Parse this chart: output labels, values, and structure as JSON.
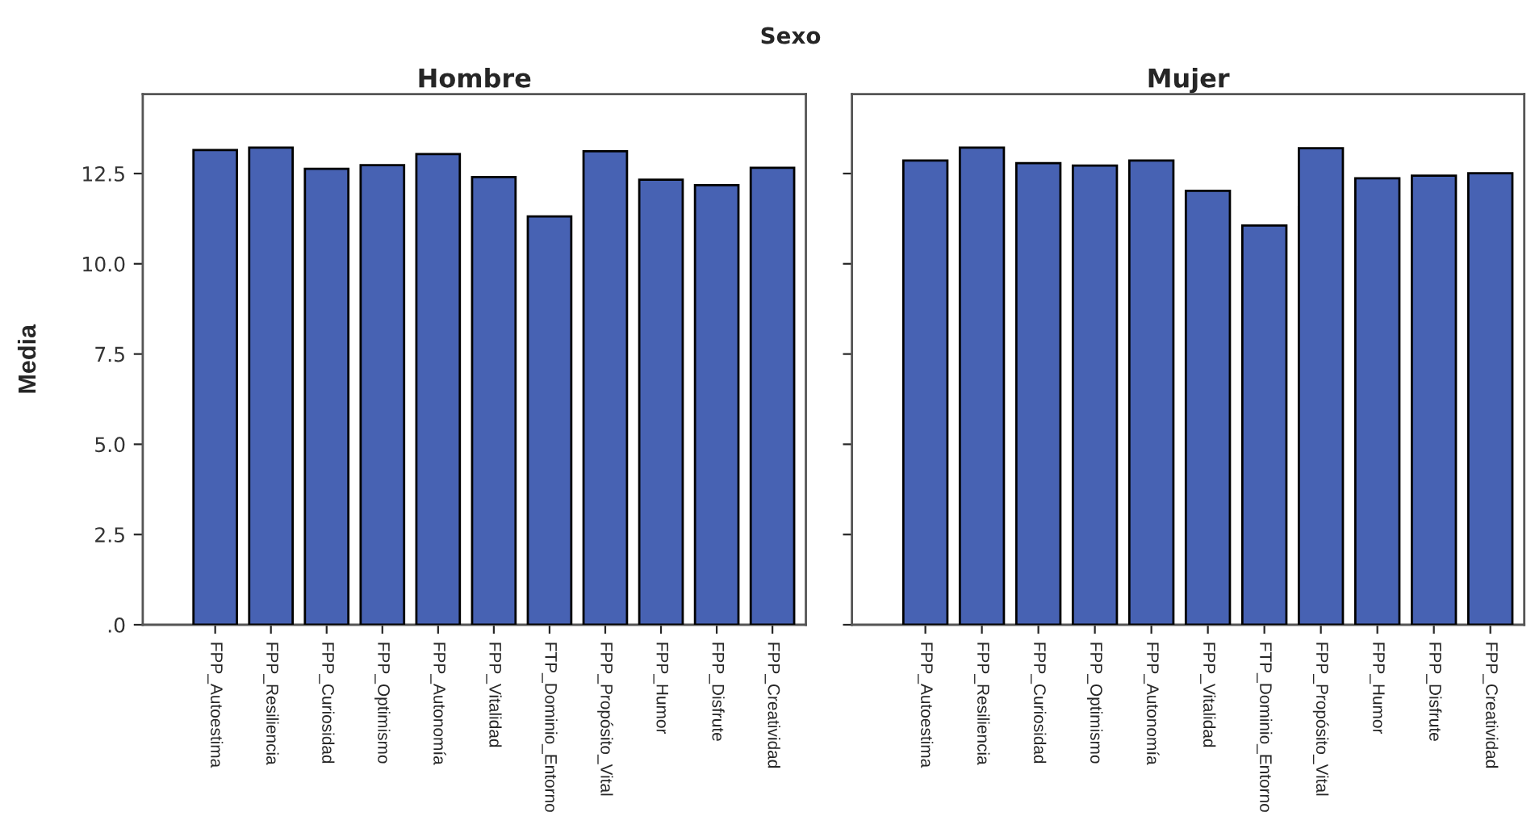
{
  "chart_data": [
    {
      "type": "bar",
      "title": "Hombre",
      "ylabel": "Media",
      "annotations": [
        "Sexo"
      ],
      "categories": [
        "FPP_Autoestima",
        "FPP_Resiliencia",
        "FPP_Curiosidad",
        "FPP_Optimismo",
        "FPP_Autonomía",
        "FPP_Vitalidad",
        "FTP_Dominio_Entorno",
        "FPP_Propósito_Vital",
        "FPP_Humor",
        "FPP_Disfrute",
        "FPP_Creatividad"
      ],
      "values": [
        13.15,
        13.22,
        12.63,
        12.73,
        13.04,
        12.4,
        11.31,
        13.12,
        12.33,
        12.18,
        12.66
      ],
      "color": "#4762b3",
      "ylim": [
        0,
        14.7
      ],
      "yticks": [
        {
          "value": 0,
          "label": ".0"
        },
        {
          "value": 2.5,
          "label": "2.5"
        },
        {
          "value": 5,
          "label": "5.0"
        },
        {
          "value": 7.5,
          "label": "7.5"
        },
        {
          "value": 10,
          "label": "10.0"
        },
        {
          "value": 12.5,
          "label": "12.5"
        }
      ],
      "grid": false
    },
    {
      "type": "bar",
      "title": "Mujer",
      "categories": [
        "FPP_Autoestima",
        "FPP_Resiliencia",
        "FPP_Curiosidad",
        "FPP_Optimismo",
        "FPP_Autonomía",
        "FPP_Vitalidad",
        "FTP_Dominio_Entorno",
        "FPP_Propósito_Vital",
        "FPP_Humor",
        "FPP_Disfrute",
        "FPP_Creatividad"
      ],
      "values": [
        12.86,
        13.22,
        12.79,
        12.72,
        12.86,
        12.02,
        11.06,
        13.2,
        12.37,
        12.44,
        12.51
      ],
      "color": "#4762b3",
      "ylim": [
        0,
        14.7
      ],
      "yticks": [
        {
          "value": 0,
          "label": null
        },
        {
          "value": 2.5,
          "label": null
        },
        {
          "value": 5,
          "label": null
        },
        {
          "value": 7.5,
          "label": null
        },
        {
          "value": 10,
          "label": null
        },
        {
          "value": 12.5,
          "label": null
        }
      ],
      "tick_labels": "x",
      "grid": false
    }
  ]
}
